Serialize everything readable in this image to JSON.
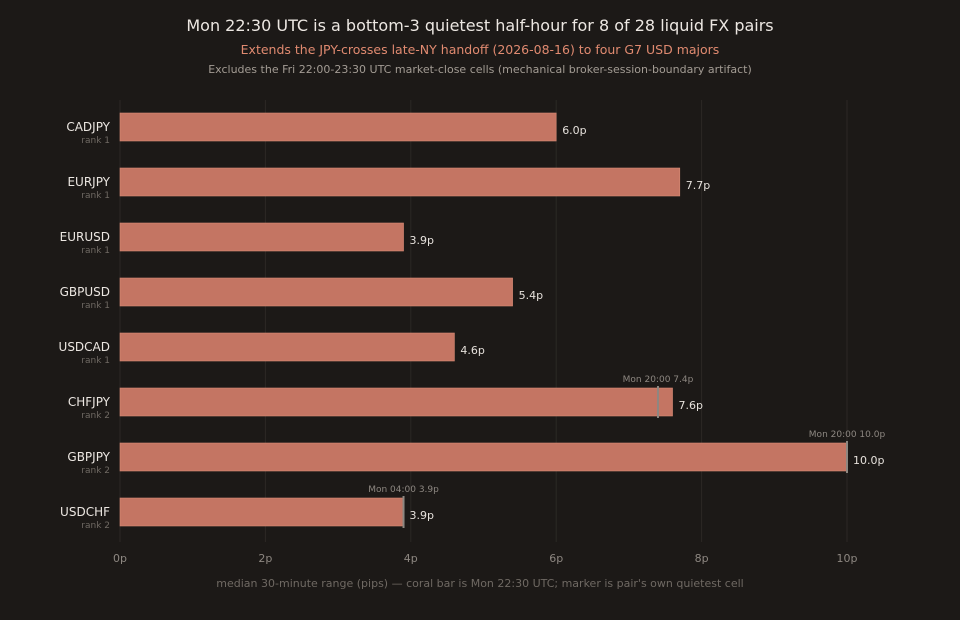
{
  "chart_data": {
    "type": "bar",
    "orientation": "horizontal",
    "title": "Mon 22:30 UTC is a bottom-3 quietest half-hour for 8 of 28 liquid FX pairs",
    "subtitle": "Extends the JPY-crosses late-NY handoff (2026-08-16) to four G7 USD majors",
    "note": "Excludes the Fri 22:00-23:30 UTC market-close cells (mechanical broker-session-boundary artifact)",
    "xlabel": "median 30-minute range (pips) — coral bar is Mon 22:30 UTC; marker is pair's own quietest cell",
    "xlim": [
      0,
      10
    ],
    "xticks": [
      0,
      2,
      4,
      6,
      8,
      10
    ],
    "xtick_labels": [
      "0p",
      "2p",
      "4p",
      "6p",
      "8p",
      "10p"
    ],
    "grid": "vertical",
    "categories": [
      "CADJPY",
      "EURJPY",
      "EURUSD",
      "GBPUSD",
      "USDCAD",
      "CHFJPY",
      "GBPJPY",
      "USDCHF"
    ],
    "ranks": [
      "rank 1",
      "rank 1",
      "rank 1",
      "rank 1",
      "rank 1",
      "rank 2",
      "rank 2",
      "rank 2"
    ],
    "values": [
      6.0,
      7.7,
      3.9,
      5.4,
      4.6,
      7.6,
      10.0,
      3.9
    ],
    "value_labels": [
      "6.0p",
      "7.7p",
      "3.9p",
      "5.4p",
      "4.6p",
      "7.6p",
      "10.0p",
      "3.9p"
    ],
    "markers": [
      null,
      null,
      null,
      null,
      null,
      {
        "value": 7.4,
        "label": "Mon 20:00 7.4p"
      },
      {
        "value": 10.0,
        "label": "Mon 20:00 10.0p"
      },
      {
        "value": 3.9,
        "label": "Mon 04:00 3.9p"
      }
    ],
    "colors": {
      "bar": "#c47563",
      "bar_edge": "#d88a76",
      "marker": "#8d8781",
      "grid": "#2c2825",
      "value_label": "#e6e1dc",
      "category": "#ece7e2",
      "rank": "#6f6963",
      "tick": "#8d8781",
      "marker_label": "#8d8781"
    }
  }
}
